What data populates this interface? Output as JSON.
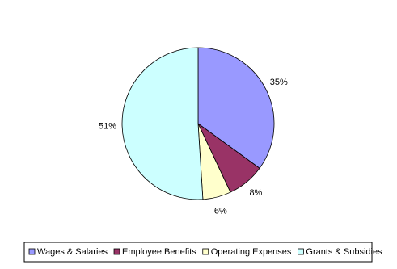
{
  "chart_data": {
    "type": "pie",
    "categories": [
      "Wages & Salaries",
      "Employee Benefits",
      "Operating Expenses",
      "Grants & Subsidies"
    ],
    "values": [
      35,
      8,
      6,
      51
    ],
    "value_labels": [
      "35%",
      "8%",
      "6%",
      "51%"
    ],
    "colors": [
      "#9999ff",
      "#993366",
      "#ffffcc",
      "#ccffff"
    ],
    "legend": "bottom"
  }
}
